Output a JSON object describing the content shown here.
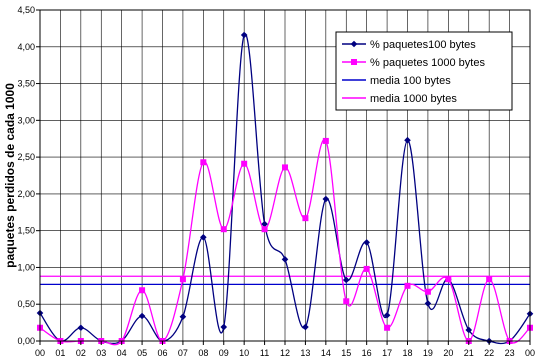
{
  "chart_data": {
    "type": "line",
    "title": "",
    "xlabel": "",
    "ylabel": "paquetes perdidos de cada 1000",
    "ylim": [
      0,
      4.5
    ],
    "ytick_step": 0.5,
    "grid": true,
    "legend_position": "top-right",
    "categories": [
      "00",
      "01",
      "02",
      "03",
      "04",
      "05",
      "06",
      "07",
      "08",
      "09",
      "10",
      "11",
      "12",
      "13",
      "14",
      "15",
      "16",
      "17",
      "18",
      "19",
      "20",
      "21",
      "22",
      "23",
      "00"
    ],
    "yticks": [
      "0,00",
      "0,50",
      "1,00",
      "1,50",
      "2,00",
      "2,50",
      "3,00",
      "3,50",
      "4,00",
      "4,50"
    ],
    "series": [
      {
        "name": "% paquetes100 bytes",
        "color": "#000080",
        "marker": "diamond",
        "smooth": true,
        "values": [
          0.38,
          0.0,
          0.18,
          0.0,
          0.0,
          0.34,
          0.0,
          0.33,
          1.41,
          0.19,
          4.16,
          1.59,
          1.11,
          0.19,
          1.93,
          0.83,
          1.34,
          0.35,
          2.73,
          0.51,
          0.84,
          0.15,
          0.0,
          0.0,
          0.37
        ]
      },
      {
        "name": "% paquetes 1000 bytes",
        "color": "#FF00FF",
        "marker": "square",
        "smooth": true,
        "values": [
          0.18,
          0.0,
          0.0,
          0.0,
          0.0,
          0.69,
          0.0,
          0.84,
          2.43,
          1.52,
          2.41,
          1.52,
          2.36,
          1.67,
          2.72,
          0.54,
          0.98,
          0.18,
          0.75,
          0.67,
          0.84,
          0.0,
          0.84,
          0.0,
          0.18
        ]
      },
      {
        "name": "media 100 bytes",
        "color": "#0000CC",
        "type": "hline",
        "value": 0.77
      },
      {
        "name": "media 1000 bytes",
        "color": "#FF00FF",
        "type": "hline",
        "value": 0.88
      }
    ]
  }
}
